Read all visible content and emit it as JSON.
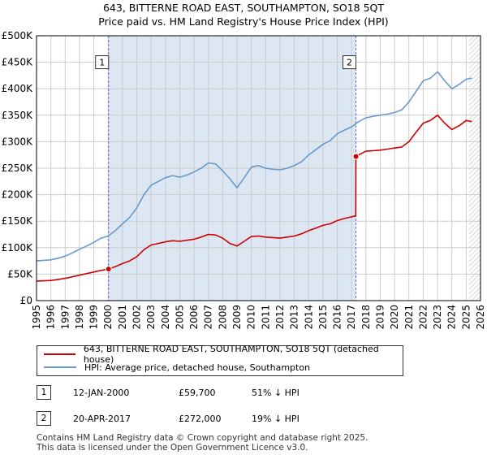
{
  "title_line1": "643, BITTERNE ROAD EAST, SOUTHAMPTON, SO18 5QT",
  "title_line2": "Price paid vs. HM Land Registry's House Price Index (HPI)",
  "legend": {
    "property_label": "643, BITTERNE ROAD EAST, SOUTHAMPTON, SO18 5QT (detached house)",
    "hpi_label": "HPI: Average price, detached house, Southampton"
  },
  "transactions": [
    {
      "num": "1",
      "date": "12-JAN-2000",
      "price": "£59,700",
      "diff": "51% ↓ HPI"
    },
    {
      "num": "2",
      "date": "20-APR-2017",
      "price": "£272,000",
      "diff": "19% ↓ HPI"
    }
  ],
  "footer_line1": "Contains HM Land Registry data © Crown copyright and database right 2025.",
  "footer_line2": "This data is licensed under the Open Government Licence v3.0.",
  "colors": {
    "property": "#cc0000",
    "hpi": "#6699cc",
    "shade": "#dde6f3",
    "grid": "#cccccc",
    "marker_line": "#6666dd"
  },
  "chart_data": {
    "type": "line",
    "xlim": [
      1995,
      2026
    ],
    "ylim": [
      0,
      500000
    ],
    "y_ticks": [
      0,
      50000,
      100000,
      150000,
      200000,
      250000,
      300000,
      350000,
      400000,
      450000,
      500000
    ],
    "y_tick_labels": [
      "£0",
      "£50K",
      "£100K",
      "£150K",
      "£200K",
      "£250K",
      "£300K",
      "£350K",
      "£400K",
      "£450K",
      "£500K"
    ],
    "x_ticks": [
      1995,
      1996,
      1997,
      1998,
      1999,
      2000,
      2001,
      2002,
      2003,
      2004,
      2005,
      2006,
      2007,
      2008,
      2009,
      2010,
      2011,
      2012,
      2013,
      2014,
      2015,
      2016,
      2017,
      2018,
      2019,
      2020,
      2021,
      2022,
      2023,
      2024,
      2025,
      2026
    ],
    "x_tick_labels": [
      "1995",
      "1996",
      "1997",
      "1998",
      "1999",
      "2000",
      "2001",
      "2002",
      "2003",
      "2004",
      "2005",
      "2006",
      "2007",
      "2008",
      "2009",
      "2010",
      "2011",
      "2012",
      "2013",
      "2014",
      "2015",
      "2016",
      "2017",
      "2018",
      "2019",
      "2020",
      "2021",
      "2022",
      "2023",
      "2024",
      "2025",
      "2026"
    ],
    "shaded_span": [
      2000.03,
      2017.3
    ],
    "future_from": 2025.2,
    "series": [
      {
        "name": "HPI: Average price, detached house, Southampton",
        "x": [
          1995,
          1995.5,
          1996,
          1996.5,
          1997,
          1997.5,
          1998,
          1998.5,
          1999,
          1999.5,
          2000,
          2000.5,
          2001,
          2001.5,
          2002,
          2002.5,
          2003,
          2003.5,
          2004,
          2004.5,
          2005,
          2005.5,
          2006,
          2006.5,
          2007,
          2007.5,
          2008,
          2008.5,
          2009,
          2009.5,
          2010,
          2010.5,
          2011,
          2011.5,
          2012,
          2012.5,
          2013,
          2013.5,
          2014,
          2014.5,
          2015,
          2015.5,
          2016,
          2016.5,
          2017,
          2017.5,
          2018,
          2018.5,
          2019,
          2019.5,
          2020,
          2020.5,
          2021,
          2021.5,
          2022,
          2022.5,
          2023,
          2023.5,
          2024,
          2024.5,
          2025,
          2025.4
        ],
        "values": [
          75000,
          76000,
          77000,
          80000,
          84000,
          90000,
          97000,
          103000,
          110000,
          118000,
          122000,
          132000,
          145000,
          157000,
          175000,
          200000,
          218000,
          225000,
          232000,
          236000,
          233000,
          237000,
          243000,
          250000,
          260000,
          258000,
          245000,
          230000,
          213000,
          232000,
          252000,
          255000,
          250000,
          248000,
          247000,
          250000,
          255000,
          262000,
          275000,
          285000,
          295000,
          302000,
          315000,
          322000,
          328000,
          338000,
          345000,
          348000,
          350000,
          352000,
          355000,
          360000,
          375000,
          395000,
          415000,
          420000,
          432000,
          415000,
          400000,
          408000,
          418000,
          420000
        ]
      },
      {
        "name": "643, BITTERNE ROAD EAST, SOUTHAMPTON, SO18 5QT (detached house)",
        "x": [
          1995,
          1995.5,
          1996,
          1996.5,
          1997,
          1997.5,
          1998,
          1998.5,
          1999,
          1999.5,
          2000.03,
          2000.5,
          2001,
          2001.5,
          2002,
          2002.5,
          2003,
          2003.5,
          2004,
          2004.5,
          2005,
          2005.5,
          2006,
          2006.5,
          2007,
          2007.5,
          2008,
          2008.5,
          2009,
          2009.5,
          2010,
          2010.5,
          2011,
          2011.5,
          2012,
          2012.5,
          2013,
          2013.5,
          2014,
          2014.5,
          2015,
          2015.5,
          2016,
          2016.5,
          2017.29,
          2017.3,
          2017.5,
          2018,
          2018.5,
          2019,
          2019.5,
          2020,
          2020.5,
          2021,
          2021.5,
          2022,
          2022.5,
          2023,
          2023.5,
          2024,
          2024.5,
          2025,
          2025.4
        ],
        "values": [
          37000,
          37500,
          38000,
          40000,
          42000,
          45000,
          48000,
          51000,
          54000,
          57000,
          59700,
          64000,
          70000,
          75000,
          83000,
          96000,
          105000,
          108000,
          111000,
          113000,
          112000,
          114000,
          116000,
          120000,
          125000,
          124000,
          118000,
          108000,
          103000,
          112000,
          121000,
          122000,
          120000,
          119000,
          118000,
          120000,
          122000,
          126000,
          132000,
          137000,
          142000,
          145000,
          151000,
          155000,
          160000,
          272000,
          275000,
          282000,
          283000,
          284000,
          286000,
          288000,
          290000,
          300000,
          318000,
          335000,
          340000,
          350000,
          335000,
          323000,
          330000,
          340000,
          338000
        ]
      }
    ],
    "sales": [
      {
        "label": "1",
        "x": 2000.03,
        "value": 59700
      },
      {
        "label": "2",
        "x": 2017.3,
        "value": 272000
      }
    ]
  }
}
